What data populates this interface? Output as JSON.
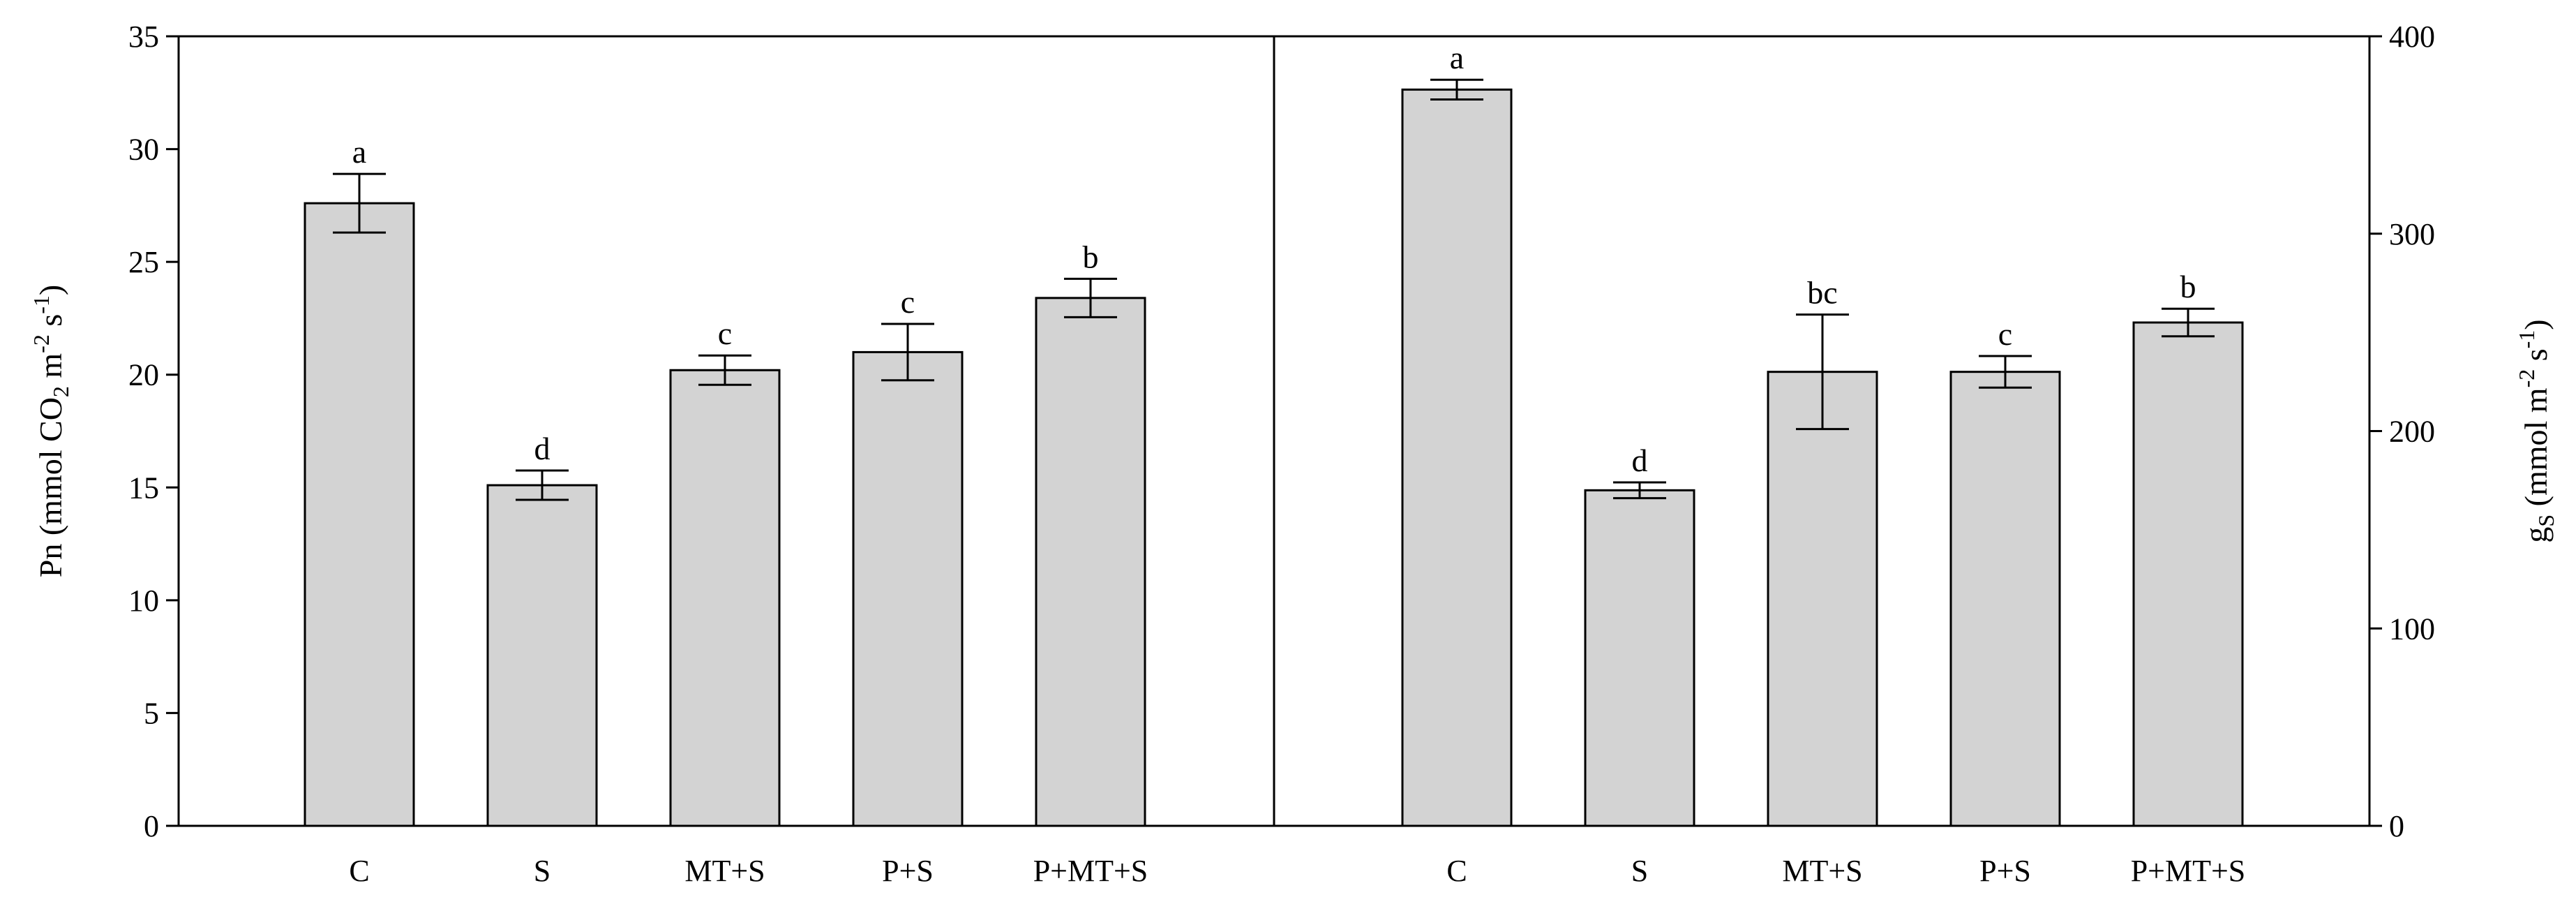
{
  "colors": {
    "bar_fill": "#d3d3d3",
    "stroke": "#000000",
    "background": "#ffffff"
  },
  "chart_data": [
    {
      "type": "bar",
      "ylabel": "Pn (mmol CO2 m-2 s-1)",
      "ylabel_parts": {
        "pre": "Pn (mmol CO",
        "sub": "2",
        "mid": " m",
        "sup1": "-2",
        "mid2": " s",
        "sup2": "-1",
        "post": ")"
      },
      "ylim": [
        0,
        35
      ],
      "yticks": [
        "0",
        "5",
        "10",
        "15",
        "20",
        "25",
        "30",
        "35"
      ],
      "y_axis_side": "left",
      "categories": [
        "C",
        "S",
        "MT+S",
        "P+S",
        "P+MT+S"
      ],
      "values": [
        27.6,
        15.1,
        20.2,
        21.0,
        23.4
      ],
      "errors": [
        1.3,
        0.65,
        0.65,
        1.25,
        0.85
      ],
      "significance": [
        "a",
        "d",
        "c",
        "c",
        "b"
      ],
      "grid": false
    },
    {
      "type": "bar",
      "ylabel": "gs (mmol m-2 s-1)",
      "ylabel_parts": {
        "pre": "g",
        "sub": "S",
        "mid": " (mmol m",
        "sup1": "-2",
        "mid2": " s",
        "sup2": "-1",
        "post": ")"
      },
      "ylim": [
        0,
        400
      ],
      "yticks": [
        "0",
        "100",
        "200",
        "300",
        "400"
      ],
      "y_axis_side": "right",
      "categories": [
        "C",
        "S",
        "MT+S",
        "P+S",
        "P+MT+S"
      ],
      "values": [
        373,
        170,
        230,
        230,
        255
      ],
      "errors": [
        5,
        4,
        29,
        8,
        7
      ],
      "significance": [
        "a",
        "d",
        "bc",
        "c",
        "b"
      ],
      "grid": false
    }
  ]
}
